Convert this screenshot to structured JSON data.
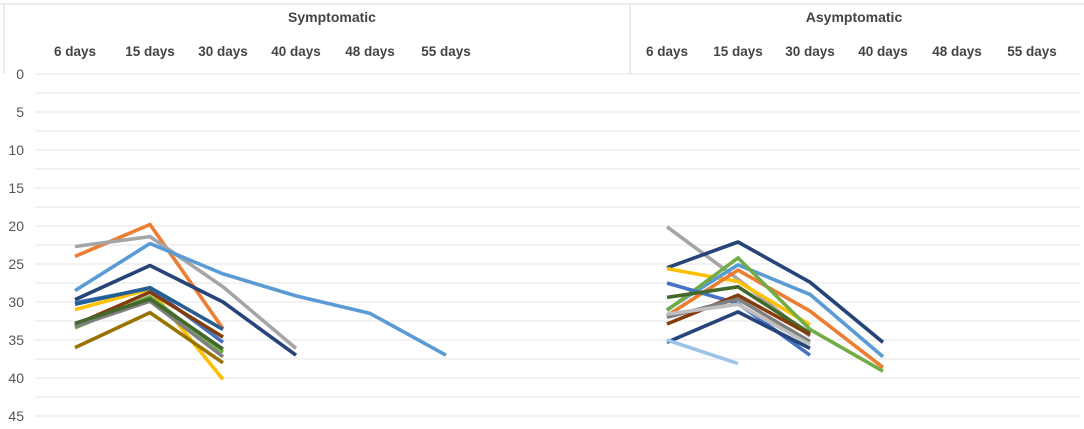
{
  "chart_data": {
    "type": "line",
    "y_axis": {
      "ticks": [
        0,
        5,
        10,
        15,
        20,
        25,
        30,
        35,
        40,
        45
      ],
      "ylim": [
        0,
        45
      ],
      "inverted": true
    },
    "grid": true,
    "panels": [
      {
        "title": "Symptomatic",
        "categories": [
          "6 days",
          "15 days",
          "30 days",
          "40 days",
          "48 days",
          "55 days"
        ],
        "series": [
          {
            "color": "#ED7D31",
            "values": [
              24.0,
              19.8,
              33.5,
              null,
              null,
              null
            ]
          },
          {
            "color": "#A5A5A5",
            "values": [
              22.7,
              21.4,
              28.0,
              36.1,
              null,
              null
            ]
          },
          {
            "color": "#5B9BD5",
            "values": [
              28.5,
              22.3,
              26.3,
              29.2,
              31.5,
              37.0
            ]
          },
          {
            "color": "#264478",
            "values": [
              29.7,
              25.2,
              30.0,
              37.0,
              null,
              null
            ]
          },
          {
            "color": "#FFC000",
            "values": [
              31.0,
              28.3,
              40.2,
              null,
              null,
              null
            ]
          },
          {
            "color": "#4472C4",
            "values": [
              30.1,
              28.2,
              35.3,
              null,
              null,
              null
            ]
          },
          {
            "color": "#70AD47",
            "values": [
              33.4,
              29.3,
              36.6,
              null,
              null,
              null
            ]
          },
          {
            "color": "#843C0C",
            "values": [
              33.0,
              28.7,
              34.6,
              null,
              null,
              null
            ]
          },
          {
            "color": "#7F7F7F",
            "values": [
              33.2,
              29.9,
              37.2,
              null,
              null,
              null
            ]
          },
          {
            "color": "#997300",
            "values": [
              36.0,
              31.4,
              38.0,
              null,
              null,
              null
            ]
          },
          {
            "color": "#255E91",
            "values": [
              30.3,
              28.1,
              33.6,
              null,
              null,
              null
            ]
          },
          {
            "color": "#43682B",
            "values": [
              32.8,
              29.6,
              36.2,
              null,
              null,
              null
            ]
          }
        ]
      },
      {
        "title": "Asymptomatic",
        "categories": [
          "6 days",
          "15 days",
          "30 days",
          "40 days",
          "48 days",
          "55 days"
        ],
        "series": [
          {
            "color": "#A5A5A5",
            "values": [
              20.1,
              27.0,
              34.5,
              null,
              null,
              null
            ]
          },
          {
            "color": "#264478",
            "values": [
              25.5,
              22.1,
              27.4,
              35.3,
              null,
              null
            ]
          },
          {
            "color": "#FFC000",
            "values": [
              25.6,
              27.3,
              33.0,
              null,
              null,
              null
            ]
          },
          {
            "color": "#5B9BD5",
            "values": [
              31.0,
              25.1,
              29.0,
              37.2,
              null,
              null
            ]
          },
          {
            "color": "#ED7D31",
            "values": [
              31.8,
              25.8,
              31.2,
              38.6,
              null,
              null
            ]
          },
          {
            "color": "#70AD47",
            "values": [
              31.1,
              24.2,
              33.6,
              39.1,
              null,
              null
            ]
          },
          {
            "color": "#4472C4",
            "values": [
              27.5,
              30.2,
              37.0,
              null,
              null,
              null
            ]
          },
          {
            "color": "#264478",
            "values": [
              35.3,
              31.3,
              36.1,
              null,
              null,
              null
            ]
          },
          {
            "color": "#43682B",
            "values": [
              29.4,
              28.0,
              34.1,
              null,
              null,
              null
            ]
          },
          {
            "color": "#843C0C",
            "values": [
              32.9,
              29.1,
              34.3,
              null,
              null,
              null
            ]
          },
          {
            "color": "#7F7F7F",
            "values": [
              32.0,
              29.6,
              35.2,
              null,
              null,
              null
            ]
          },
          {
            "color": "#BFBFBF",
            "values": [
              31.6,
              30.3,
              35.6,
              null,
              null,
              null
            ]
          },
          {
            "color": "#9DC3E6",
            "values": [
              35.0,
              38.1,
              null,
              null,
              null,
              null
            ]
          }
        ]
      }
    ]
  }
}
